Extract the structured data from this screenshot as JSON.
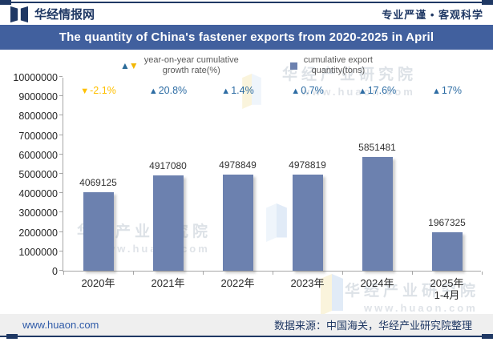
{
  "header": {
    "brand": "华经情报网",
    "tagline": "专业严谨 • 客观科学"
  },
  "title_bar": {
    "title": "The quantity of China's fastener exports from 2020-2025 in April"
  },
  "legend": {
    "growth_line1": "year-on-year cumulative",
    "growth_line2": "growth rate(%)",
    "quantity_line1": "cumulative export",
    "quantity_line2": "quantity(tons)"
  },
  "chart_data": {
    "type": "bar",
    "title": "The quantity of China's fastener exports from 2020-2025 in April",
    "categories": [
      "2020年",
      "2021年",
      "2022年",
      "2023年",
      "2024年",
      "2025年"
    ],
    "category_sub": [
      "",
      "",
      "",
      "",
      "",
      "1-4月"
    ],
    "series": [
      {
        "name": "cumulative export quantity(tons)",
        "type": "bar",
        "values": [
          4069125,
          4917080,
          4978849,
          4978819,
          5851481,
          1967325
        ]
      },
      {
        "name": "year-on-year cumulative growth rate(%)",
        "type": "point-label",
        "values": [
          -2.1,
          20.8,
          1.4,
          0.7,
          17.6,
          17
        ]
      }
    ],
    "growth_labels": [
      "-2.1%",
      "20.8%",
      "1.4%",
      "0.7%",
      "17.6%",
      "17%"
    ],
    "xlabel": "",
    "ylabel": "",
    "ylim": [
      0,
      10000000
    ],
    "ytick_step": 1000000,
    "grid": false,
    "legend_position": "top"
  },
  "colors": {
    "bar": "#6C81AF",
    "growth_positive": "#2E6DA4",
    "growth_negative": "#FFC000",
    "title_bar_bg": "#41609E",
    "brand_navy": "#1F3864",
    "footer_bg": "#EFEFEF",
    "footer_link": "#2E5AA8"
  },
  "watermark": {
    "text": "华经产业研究院",
    "url": "www.huaon.com"
  },
  "footer": {
    "site": "www.huaon.com",
    "source": "数据来源：中国海关，华经产业研究院整理"
  }
}
